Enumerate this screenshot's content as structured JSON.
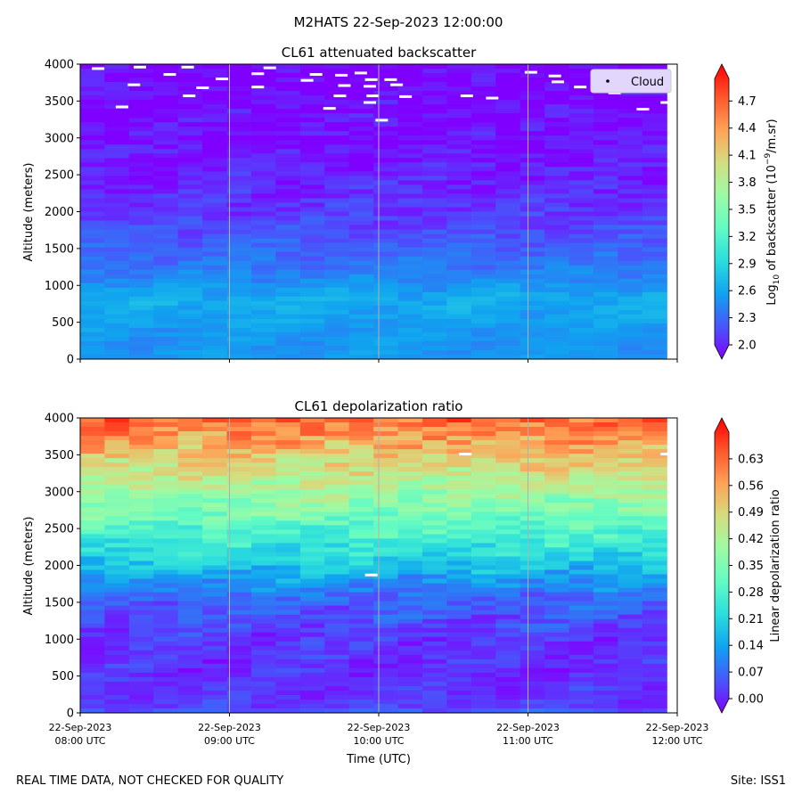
{
  "figure": {
    "suptitle": "M2HATS 22-Sep-2023 12:00:00",
    "footer_left": "REAL TIME DATA, NOT CHECKED FOR QUALITY",
    "footer_right": "Site: ISS1",
    "colors": {
      "rainbow": [
        "#8000ff",
        "#4856fb",
        "#10a2f0",
        "#2adddd",
        "#62fbc4",
        "#9cfba4",
        "#d4dd80",
        "#ffa256",
        "#ff562c",
        "#ff0000"
      ],
      "cloud_marker": "#ffffff",
      "grid": "#b0b0b0"
    }
  },
  "chart_data": [
    {
      "type": "heatmap",
      "title": "CL61 attenuated backscatter",
      "xlabel": "",
      "ylabel": "Altitude (meters)",
      "ylim": [
        0,
        4000
      ],
      "yticks": [
        "0",
        "500",
        "1000",
        "1500",
        "2000",
        "2500",
        "3000",
        "3500",
        "4000"
      ],
      "xlim_hours": [
        8,
        12
      ],
      "data_end_hour": 11.93,
      "grid": "vertical",
      "legend": {
        "position": "top-right",
        "entries": [
          "Cloud"
        ]
      },
      "colorbar": {
        "label_main": "Log",
        "label_sub": "10",
        "label_rest": " of backscatter (10",
        "label_sup": "−9",
        "label_end": "/m.sr)",
        "range": [
          2.0,
          4.95
        ],
        "ticks": [
          "2.0",
          "2.3",
          "2.6",
          "2.9",
          "3.2",
          "3.5",
          "3.8",
          "4.1",
          "4.4",
          "4.7"
        ]
      },
      "profile": [
        {
          "alt": 0,
          "value": 2.62
        },
        {
          "alt": 200,
          "value": 2.6
        },
        {
          "alt": 500,
          "value": 2.65
        },
        {
          "alt": 800,
          "value": 2.72
        },
        {
          "alt": 1000,
          "value": 2.6
        },
        {
          "alt": 1300,
          "value": 2.45
        },
        {
          "alt": 1600,
          "value": 2.35
        },
        {
          "alt": 2000,
          "value": 2.22
        },
        {
          "alt": 2500,
          "value": 2.12
        },
        {
          "alt": 3000,
          "value": 2.05
        },
        {
          "alt": 3500,
          "value": 2.01
        },
        {
          "alt": 4000,
          "value": 1.98
        }
      ],
      "cloud_points": [
        {
          "hour": 8.12,
          "alt": 3940
        },
        {
          "hour": 8.4,
          "alt": 3960
        },
        {
          "hour": 8.72,
          "alt": 3960
        },
        {
          "hour": 8.6,
          "alt": 3860
        },
        {
          "hour": 8.36,
          "alt": 3720
        },
        {
          "hour": 8.82,
          "alt": 3680
        },
        {
          "hour": 8.73,
          "alt": 3570
        },
        {
          "hour": 8.28,
          "alt": 3420
        },
        {
          "hour": 8.95,
          "alt": 3800
        },
        {
          "hour": 9.19,
          "alt": 3870
        },
        {
          "hour": 9.27,
          "alt": 3950
        },
        {
          "hour": 9.19,
          "alt": 3690
        },
        {
          "hour": 9.52,
          "alt": 3780
        },
        {
          "hour": 9.58,
          "alt": 3860
        },
        {
          "hour": 9.75,
          "alt": 3850
        },
        {
          "hour": 9.88,
          "alt": 3880
        },
        {
          "hour": 9.95,
          "alt": 3790
        },
        {
          "hour": 10.08,
          "alt": 3790
        },
        {
          "hour": 9.77,
          "alt": 3710
        },
        {
          "hour": 9.94,
          "alt": 3700
        },
        {
          "hour": 10.12,
          "alt": 3720
        },
        {
          "hour": 9.74,
          "alt": 3570
        },
        {
          "hour": 9.96,
          "alt": 3570
        },
        {
          "hour": 10.18,
          "alt": 3560
        },
        {
          "hour": 9.94,
          "alt": 3480
        },
        {
          "hour": 9.67,
          "alt": 3400
        },
        {
          "hour": 10.02,
          "alt": 3240
        },
        {
          "hour": 10.59,
          "alt": 3570
        },
        {
          "hour": 10.76,
          "alt": 3540
        },
        {
          "hour": 11.02,
          "alt": 3890
        },
        {
          "hour": 11.18,
          "alt": 3840
        },
        {
          "hour": 11.2,
          "alt": 3760
        },
        {
          "hour": 11.35,
          "alt": 3690
        },
        {
          "hour": 11.6,
          "alt": 3810
        },
        {
          "hour": 11.58,
          "alt": 3610
        },
        {
          "hour": 11.77,
          "alt": 3390
        },
        {
          "hour": 11.93,
          "alt": 3480
        }
      ]
    },
    {
      "type": "heatmap",
      "title": "CL61 depolarization ratio",
      "xlabel": "Time (UTC)",
      "ylabel": "Altitude (meters)",
      "ylim": [
        0,
        4000
      ],
      "yticks": [
        "0",
        "500",
        "1000",
        "1500",
        "2000",
        "2500",
        "3000",
        "3500",
        "4000"
      ],
      "xlim_hours": [
        8,
        12
      ],
      "data_end_hour": 11.93,
      "grid": "vertical",
      "xticks": [
        {
          "date": "22-Sep-2023",
          "time": "08:00 UTC"
        },
        {
          "date": "22-Sep-2023",
          "time": "09:00 UTC"
        },
        {
          "date": "22-Sep-2023",
          "time": "10:00 UTC"
        },
        {
          "date": "22-Sep-2023",
          "time": "11:00 UTC"
        },
        {
          "date": "22-Sep-2023",
          "time": "12:00 UTC"
        }
      ],
      "colorbar": {
        "label": "Linear depolarization ratio",
        "range": [
          0.0,
          0.7
        ],
        "ticks": [
          "0.00",
          "0.07",
          "0.14",
          "0.21",
          "0.28",
          "0.35",
          "0.42",
          "0.49",
          "0.56",
          "0.63"
        ]
      },
      "profile": [
        {
          "alt": 0,
          "value": 0.1
        },
        {
          "alt": 80,
          "value": 0.055
        },
        {
          "alt": 500,
          "value": 0.04
        },
        {
          "alt": 1000,
          "value": 0.05
        },
        {
          "alt": 1500,
          "value": 0.09
        },
        {
          "alt": 1800,
          "value": 0.15
        },
        {
          "alt": 2100,
          "value": 0.22
        },
        {
          "alt": 2500,
          "value": 0.3
        },
        {
          "alt": 3000,
          "value": 0.4
        },
        {
          "alt": 3500,
          "value": 0.5
        },
        {
          "alt": 3900,
          "value": 0.58
        },
        {
          "alt": 4000,
          "value": 0.6
        }
      ],
      "missing_points": [
        {
          "hour": 9.95,
          "alt": 1870
        },
        {
          "hour": 10.58,
          "alt": 3510
        },
        {
          "hour": 11.93,
          "alt": 3510
        }
      ]
    }
  ]
}
